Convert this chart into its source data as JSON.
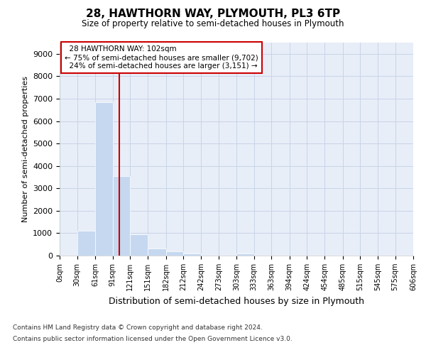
{
  "title_line1": "28, HAWTHORN WAY, PLYMOUTH, PL3 6TP",
  "title_line2": "Size of property relative to semi-detached houses in Plymouth",
  "xlabel": "Distribution of semi-detached houses by size in Plymouth",
  "ylabel": "Number of semi-detached properties",
  "property_size": 102,
  "property_label": "28 HAWTHORN WAY: 102sqm",
  "pct_smaller": 75,
  "n_smaller": 9702,
  "pct_larger": 24,
  "n_larger": 3151,
  "bar_color": "#c5d8f0",
  "vline_color": "#cc0000",
  "annotation_box_color": "#cc0000",
  "grid_color": "#c8d4e8",
  "bg_color": "#e8eef8",
  "bin_edges": [
    0,
    30,
    61,
    91,
    121,
    151,
    182,
    212,
    242,
    273,
    303,
    333,
    363,
    394,
    424,
    454,
    485,
    515,
    545,
    575,
    606
  ],
  "bin_labels": [
    "0sqm",
    "30sqm",
    "61sqm",
    "91sqm",
    "121sqm",
    "151sqm",
    "182sqm",
    "212sqm",
    "242sqm",
    "273sqm",
    "303sqm",
    "333sqm",
    "363sqm",
    "394sqm",
    "424sqm",
    "454sqm",
    "485sqm",
    "515sqm",
    "545sqm",
    "575sqm",
    "606sqm"
  ],
  "bar_heights": [
    0,
    1120,
    6850,
    3550,
    950,
    330,
    180,
    100,
    0,
    0,
    100,
    0,
    0,
    0,
    0,
    0,
    0,
    0,
    0,
    0
  ],
  "ylim": [
    0,
    9500
  ],
  "yticks": [
    0,
    1000,
    2000,
    3000,
    4000,
    5000,
    6000,
    7000,
    8000,
    9000
  ],
  "footnote1": "Contains HM Land Registry data © Crown copyright and database right 2024.",
  "footnote2": "Contains public sector information licensed under the Open Government Licence v3.0."
}
